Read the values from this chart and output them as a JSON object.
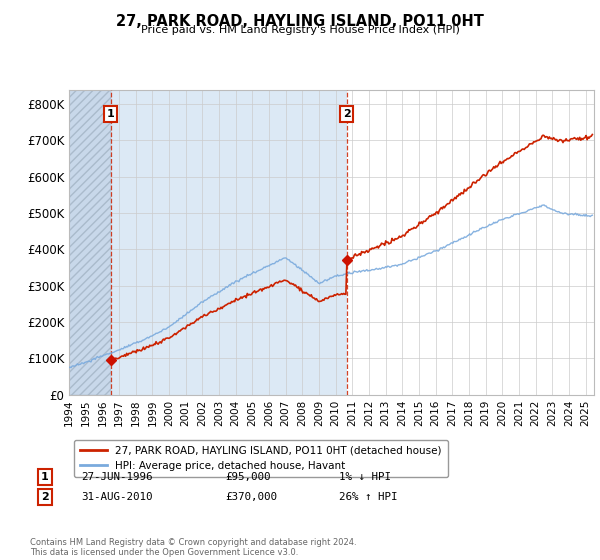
{
  "title": "27, PARK ROAD, HAYLING ISLAND, PO11 0HT",
  "subtitle": "Price paid vs. HM Land Registry's House Price Index (HPI)",
  "ylim": [
    0,
    840000
  ],
  "yticks": [
    0,
    100000,
    200000,
    300000,
    400000,
    500000,
    600000,
    700000,
    800000
  ],
  "ytick_labels": [
    "£0",
    "£100K",
    "£200K",
    "£300K",
    "£400K",
    "£500K",
    "£600K",
    "£700K",
    "£800K"
  ],
  "xlim_start": 1994.0,
  "xlim_end": 2025.5,
  "hpi_color": "#7aaadd",
  "price_color": "#cc2200",
  "marker_color": "#cc1100",
  "purchase1_x": 1996.49,
  "purchase1_y": 95000,
  "purchase2_x": 2010.66,
  "purchase2_y": 370000,
  "legend_line1": "27, PARK ROAD, HAYLING ISLAND, PO11 0HT (detached house)",
  "legend_line2": "HPI: Average price, detached house, Havant",
  "table_row1": [
    "1",
    "27-JUN-1996",
    "£95,000",
    "1% ↓ HPI"
  ],
  "table_row2": [
    "2",
    "31-AUG-2010",
    "£370,000",
    "26% ↑ HPI"
  ],
  "footnote": "Contains HM Land Registry data © Crown copyright and database right 2024.\nThis data is licensed under the Open Government Licence v3.0.",
  "background_color": "#ffffff",
  "plot_bg_color": "#ffffff",
  "grid_color": "#cccccc",
  "shade_color": "#dce9f5"
}
